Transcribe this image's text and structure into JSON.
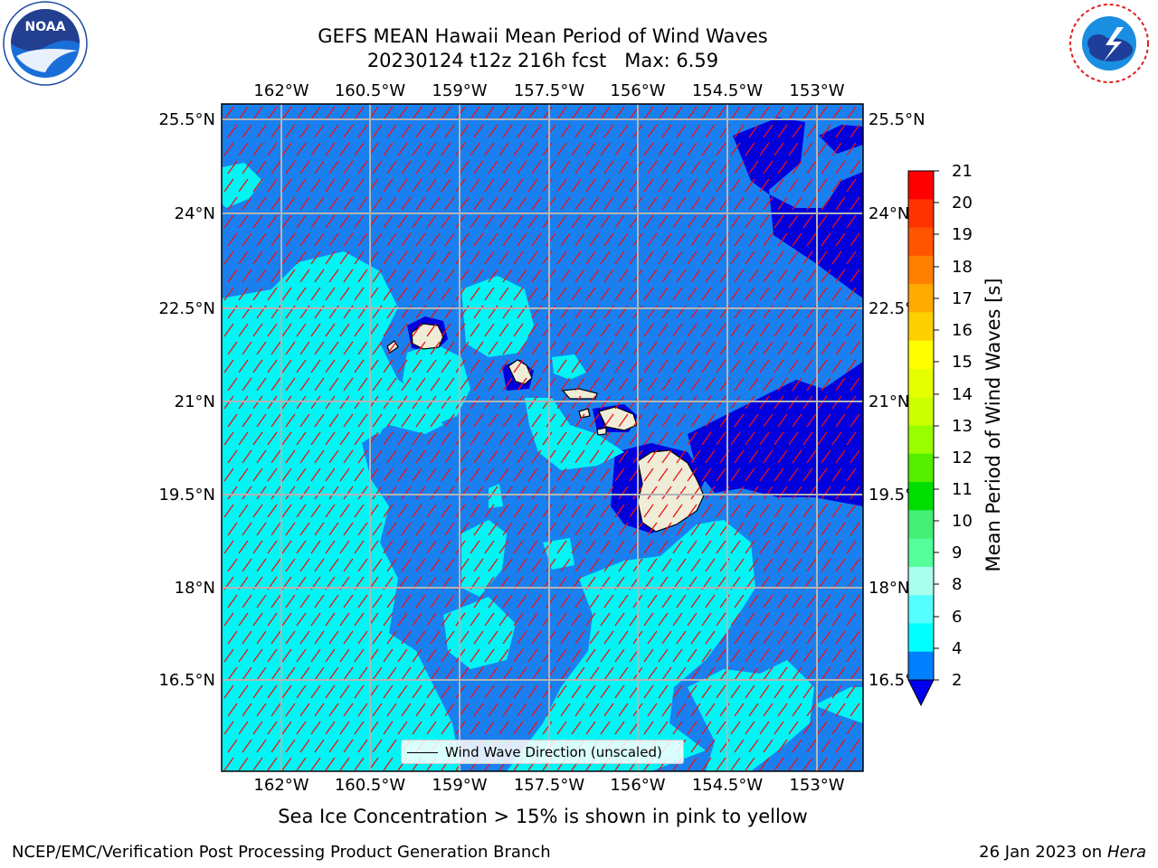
{
  "title_line1": "GEFS MEAN Hawaii Mean Period of Wind Waves",
  "title_line2": "20230124 t12z 216h fcst   Max: 6.59",
  "lon_labels": [
    "162°W",
    "160.5°W",
    "159°W",
    "157.5°W",
    "156°W",
    "154.5°W",
    "153°W"
  ],
  "lat_labels": [
    "25.5°N",
    "24°N",
    "22.5°N",
    "21°N",
    "19.5°N",
    "18°N",
    "16.5°N"
  ],
  "legend_label": "Wind Wave Direction (unscaled)",
  "colorbar": {
    "label": "Mean Period of Wind Waves [s]",
    "ticks": [
      "21",
      "20",
      "19",
      "18",
      "17",
      "16",
      "15",
      "14",
      "13",
      "12",
      "11",
      "10",
      "9",
      "8",
      "6",
      "4",
      "2"
    ],
    "colors": [
      "#ff0000",
      "#ff3300",
      "#ff5500",
      "#ff8000",
      "#ffaa00",
      "#ffd000",
      "#ffff00",
      "#e6ff00",
      "#ccff00",
      "#99ff00",
      "#55ee00",
      "#00dd00",
      "#44ee77",
      "#55ff99",
      "#aaffee",
      "#55ffff",
      "#00ffff",
      "#0080ff"
    ],
    "under_color": "#0000ee"
  },
  "note": "Sea Ice Concentration > 15% is shown in pink to yellow",
  "credit": "NCEP/EMC/Verification Post Processing Product Generation Branch",
  "date": "26 Jan 2023 on",
  "host": "Hera",
  "logo_left_text": "NOAA",
  "map_colors": {
    "ocean_blue": "#1a80f0",
    "low_blue": "#0000dd",
    "cyan": "#00f5f5",
    "land": "#efecd8",
    "arrow": "#ee1111",
    "grid": "#b4b4b4"
  }
}
